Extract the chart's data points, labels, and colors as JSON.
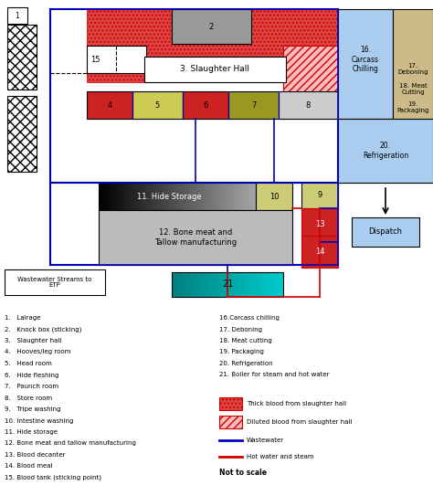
{
  "bg_color": "#ffffff",
  "blue": "#0000bb",
  "red": "#cc0000",
  "left_list": [
    "1.   Lairage",
    "2.   Knock box (sticking)",
    "3.   Slaughter hall",
    "4.   Hooves/leg room",
    "5.   Head room",
    "6.   Hide fleshing",
    "7.   Paunch room",
    "8.   Store room",
    "9.   Tripe washing",
    "10. Intestine washing",
    "11. Hide storage",
    "12. Bone meat and tallow manufacturing",
    "13. Blood decanter",
    "14. Blood meal",
    "15. Blood tank (sticking point)"
  ],
  "right_list": [
    "16.Carcass chilling",
    "17. Deboning",
    "18. Meat cutting",
    "19. Packaging",
    "20. Refrigeration",
    "21. Boiler for steam and hot water"
  ]
}
